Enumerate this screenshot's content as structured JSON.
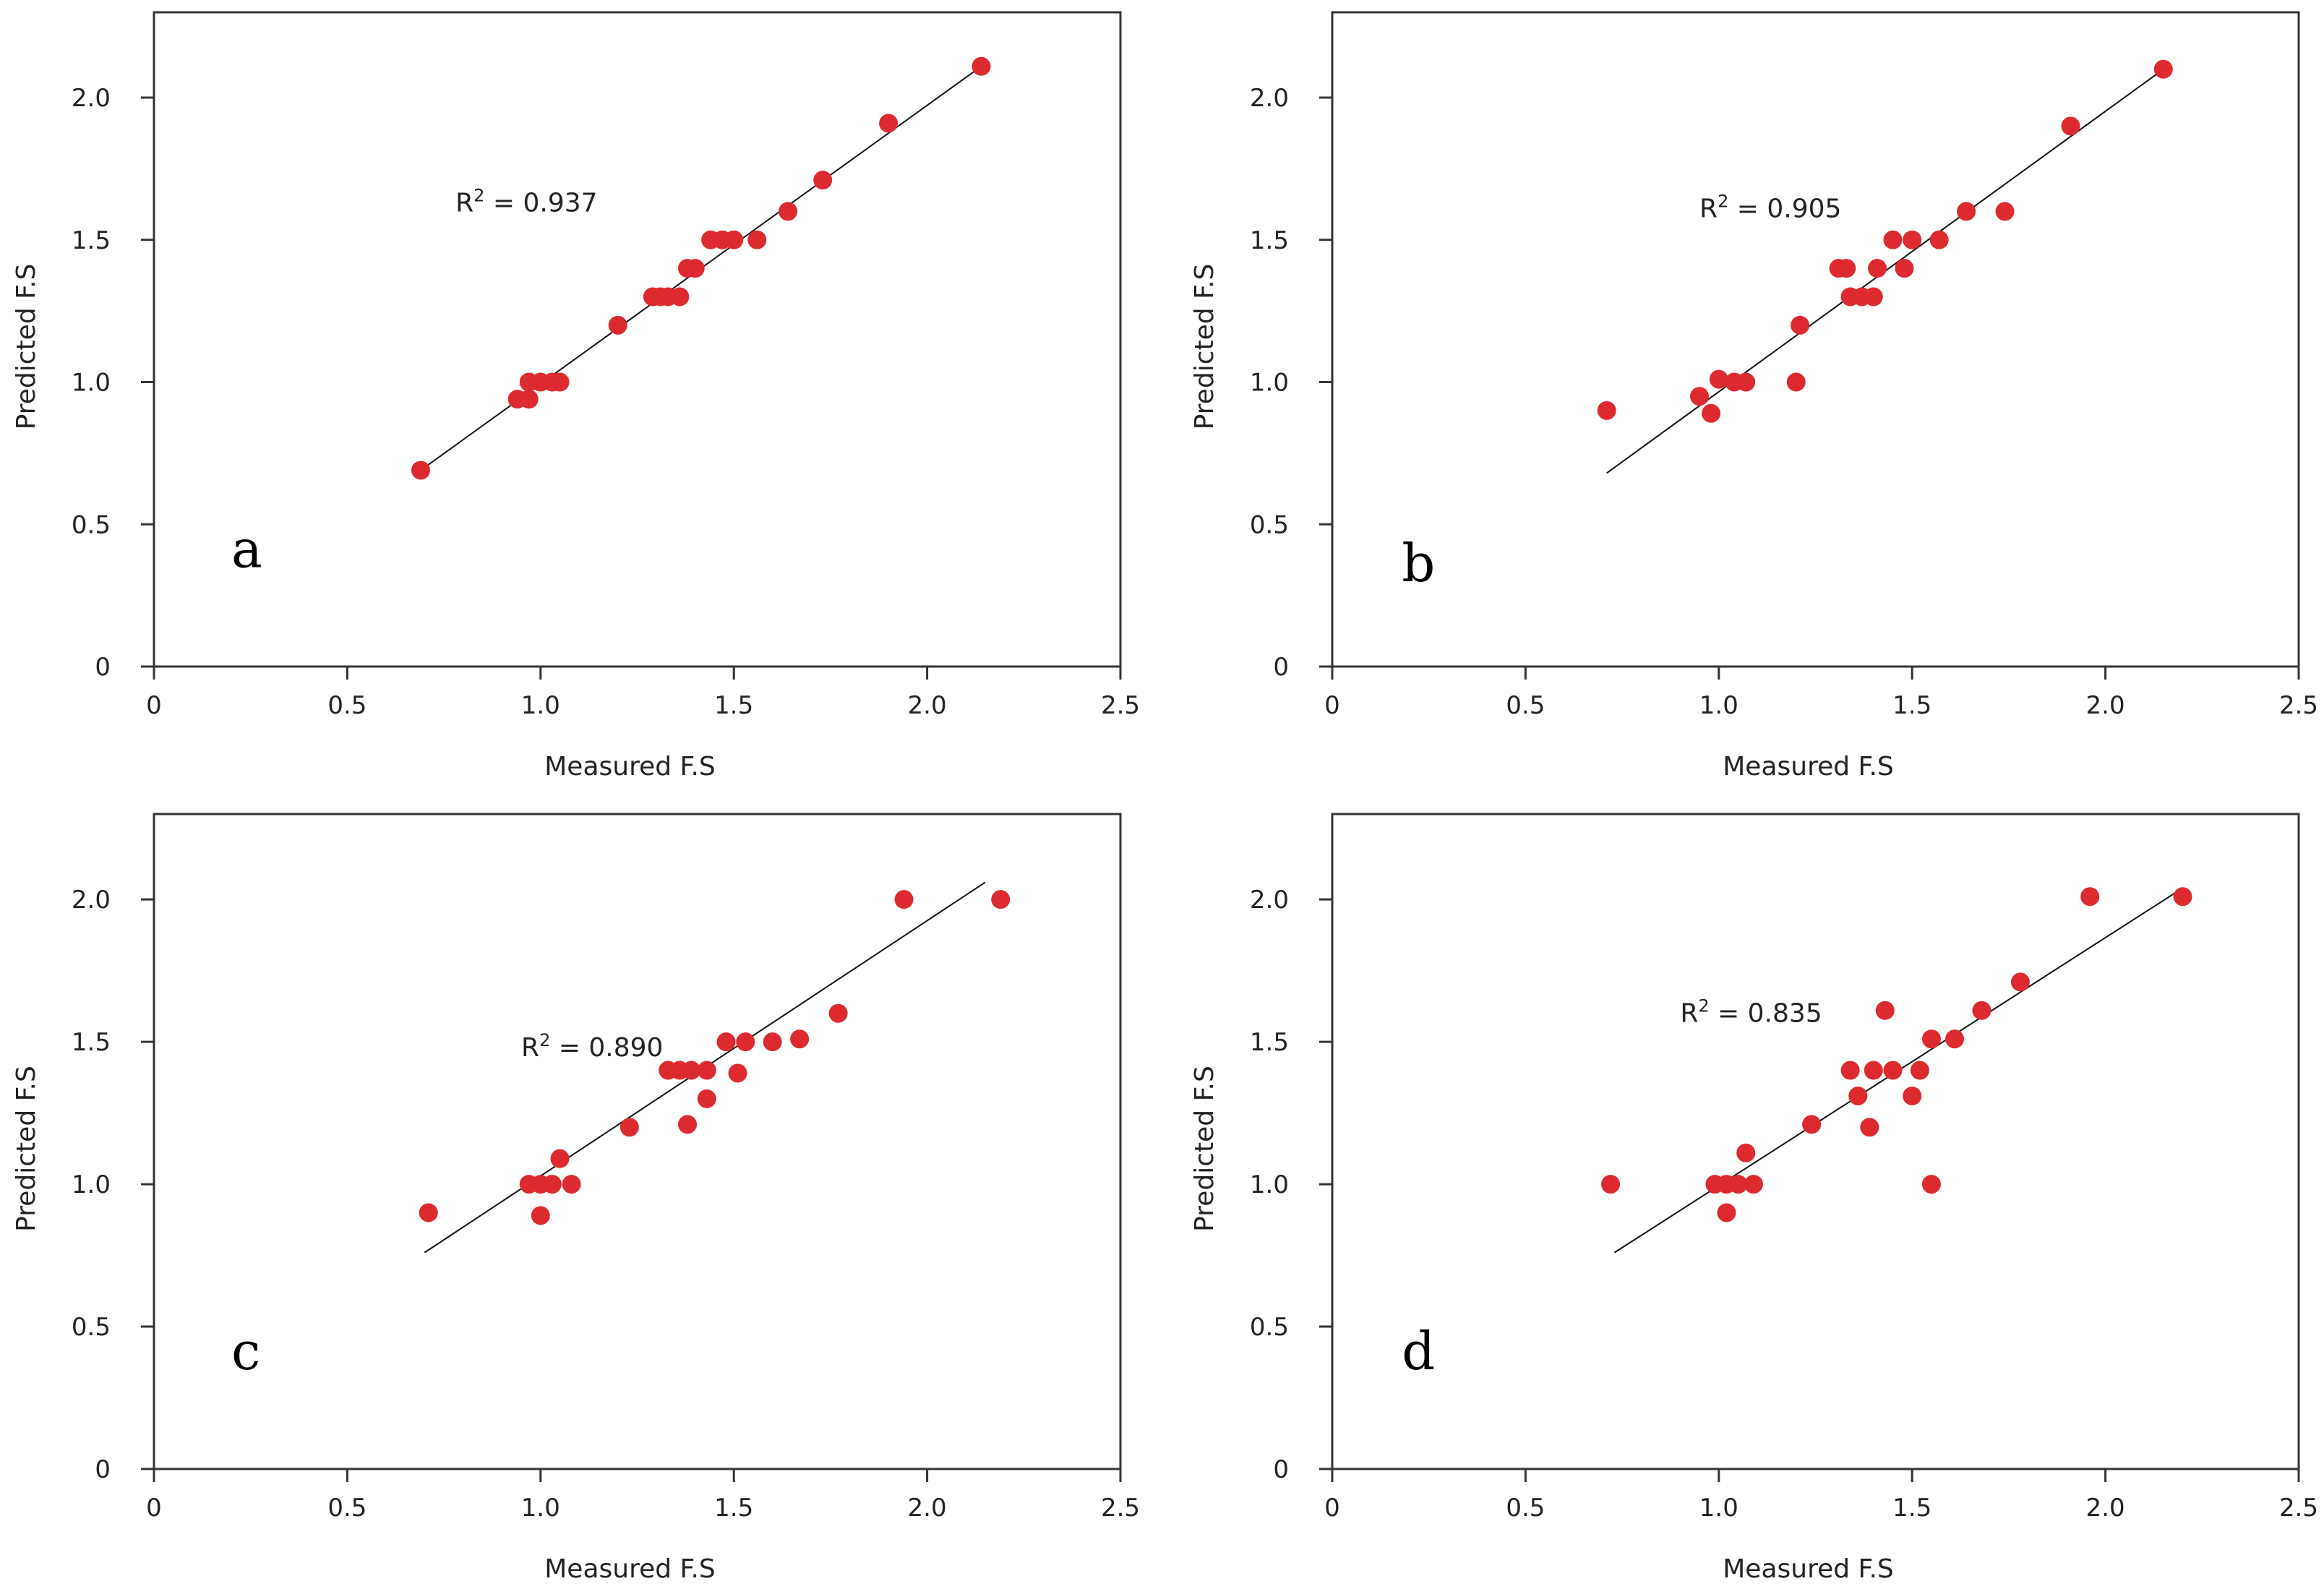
{
  "chart_data": [
    {
      "type": "scatter",
      "panel_label": "a",
      "xlabel": "Measured F.S",
      "ylabel": "Predicted F.S",
      "xlim": [
        0,
        2.5
      ],
      "ylim": [
        0,
        2.3
      ],
      "xticks": [
        0,
        0.5,
        1.0,
        1.5,
        2.0,
        2.5
      ],
      "xtick_labels": [
        "0",
        "0.5",
        "1.0",
        "1.5",
        "2.0",
        "2.5"
      ],
      "yticks": [
        0,
        0.5,
        1.0,
        1.5,
        2.0
      ],
      "ytick_labels": [
        "0",
        "0.5",
        "1.0",
        "1.5",
        "2.0"
      ],
      "r2": "0.937",
      "fit_line": [
        [
          0.69,
          0.69
        ],
        [
          2.14,
          2.11
        ]
      ],
      "x": [
        0.69,
        0.94,
        0.97,
        0.97,
        1.0,
        1.03,
        1.05,
        1.2,
        1.29,
        1.31,
        1.33,
        1.36,
        1.38,
        1.4,
        1.44,
        1.47,
        1.5,
        1.56,
        1.64,
        1.73,
        1.9,
        2.14
      ],
      "y": [
        0.69,
        0.94,
        1.0,
        0.94,
        1.0,
        1.0,
        1.0,
        1.2,
        1.3,
        1.3,
        1.3,
        1.3,
        1.4,
        1.4,
        1.5,
        1.5,
        1.5,
        1.5,
        1.6,
        1.71,
        1.91,
        2.11
      ],
      "colors": {
        "marker": "#dc2a2e",
        "line": "#111111"
      }
    },
    {
      "type": "scatter",
      "panel_label": "b",
      "xlabel": "Measured F.S",
      "ylabel": "Predicted F.S",
      "xlim": [
        0,
        2.5
      ],
      "ylim": [
        0,
        2.3
      ],
      "xticks": [
        0,
        0.5,
        1.0,
        1.5,
        2.0,
        2.5
      ],
      "xtick_labels": [
        "0",
        "0.5",
        "1.0",
        "1.5",
        "2.0",
        "2.5"
      ],
      "yticks": [
        0,
        0.5,
        1.0,
        1.5,
        2.0
      ],
      "ytick_labels": [
        "0",
        "0.5",
        "1.0",
        "1.5",
        "2.0"
      ],
      "r2": "0.905",
      "fit_line": [
        [
          0.71,
          0.68
        ],
        [
          2.14,
          2.09
        ]
      ],
      "x": [
        0.71,
        0.95,
        0.98,
        1.0,
        1.04,
        1.07,
        1.2,
        1.21,
        1.31,
        1.33,
        1.34,
        1.37,
        1.4,
        1.41,
        1.45,
        1.48,
        1.5,
        1.57,
        1.64,
        1.74,
        1.91,
        2.15
      ],
      "y": [
        0.9,
        0.95,
        0.89,
        1.01,
        1.0,
        1.0,
        1.0,
        1.2,
        1.4,
        1.4,
        1.3,
        1.3,
        1.3,
        1.4,
        1.5,
        1.4,
        1.5,
        1.5,
        1.6,
        1.6,
        1.9,
        2.1
      ],
      "colors": {
        "marker": "#dc2a2e",
        "line": "#111111"
      }
    },
    {
      "type": "scatter",
      "panel_label": "c",
      "xlabel": "Measured F.S",
      "ylabel": "Predicted F.S",
      "xlim": [
        0,
        2.5
      ],
      "ylim": [
        0,
        2.3
      ],
      "xticks": [
        0,
        0.5,
        1.0,
        1.5,
        2.0,
        2.5
      ],
      "xtick_labels": [
        "0",
        "0.5",
        "1.0",
        "1.5",
        "2.0",
        "2.5"
      ],
      "yticks": [
        0,
        0.5,
        1.0,
        1.5,
        2.0
      ],
      "ytick_labels": [
        "0",
        "0.5",
        "1.0",
        "1.5",
        "2.0"
      ],
      "r2": "0.890",
      "fit_line": [
        [
          0.7,
          0.76
        ],
        [
          2.15,
          2.06
        ]
      ],
      "x": [
        0.71,
        0.97,
        1.0,
        1.0,
        1.03,
        1.05,
        1.08,
        1.23,
        1.33,
        1.36,
        1.39,
        1.38,
        1.43,
        1.43,
        1.48,
        1.51,
        1.53,
        1.6,
        1.67,
        1.77,
        1.94,
        2.19
      ],
      "y": [
        0.9,
        1.0,
        1.0,
        0.89,
        1.0,
        1.09,
        1.0,
        1.2,
        1.4,
        1.4,
        1.4,
        1.21,
        1.3,
        1.4,
        1.5,
        1.39,
        1.5,
        1.5,
        1.51,
        1.6,
        2.0,
        2.0
      ],
      "colors": {
        "marker": "#dc2a2e",
        "line": "#111111"
      }
    },
    {
      "type": "scatter",
      "panel_label": "d",
      "xlabel": "Measured F.S",
      "ylabel": "Predicted F.S",
      "xlim": [
        0,
        2.5
      ],
      "ylim": [
        0,
        2.3
      ],
      "xticks": [
        0,
        0.5,
        1.0,
        1.5,
        2.0,
        2.5
      ],
      "xtick_labels": [
        "0",
        "0.5",
        "1.0",
        "1.5",
        "2.0",
        "2.5"
      ],
      "yticks": [
        0,
        0.5,
        1.0,
        1.5,
        2.0
      ],
      "ytick_labels": [
        "0",
        "0.5",
        "1.0",
        "1.5",
        "2.0"
      ],
      "r2": "0.835",
      "fit_line": [
        [
          0.73,
          0.76
        ],
        [
          2.2,
          2.04
        ]
      ],
      "x": [
        0.72,
        0.99,
        1.02,
        1.02,
        1.05,
        1.07,
        1.09,
        1.24,
        1.34,
        1.36,
        1.39,
        1.4,
        1.43,
        1.45,
        1.5,
        1.52,
        1.55,
        1.55,
        1.61,
        1.68,
        1.78,
        1.96,
        2.2
      ],
      "y": [
        1.0,
        1.0,
        1.0,
        0.9,
        1.0,
        1.11,
        1.0,
        1.21,
        1.4,
        1.31,
        1.2,
        1.4,
        1.61,
        1.4,
        1.31,
        1.4,
        1.51,
        1.0,
        1.51,
        1.61,
        1.71,
        2.01,
        2.01
      ],
      "colors": {
        "marker": "#dc2a2e",
        "line": "#111111"
      }
    }
  ]
}
